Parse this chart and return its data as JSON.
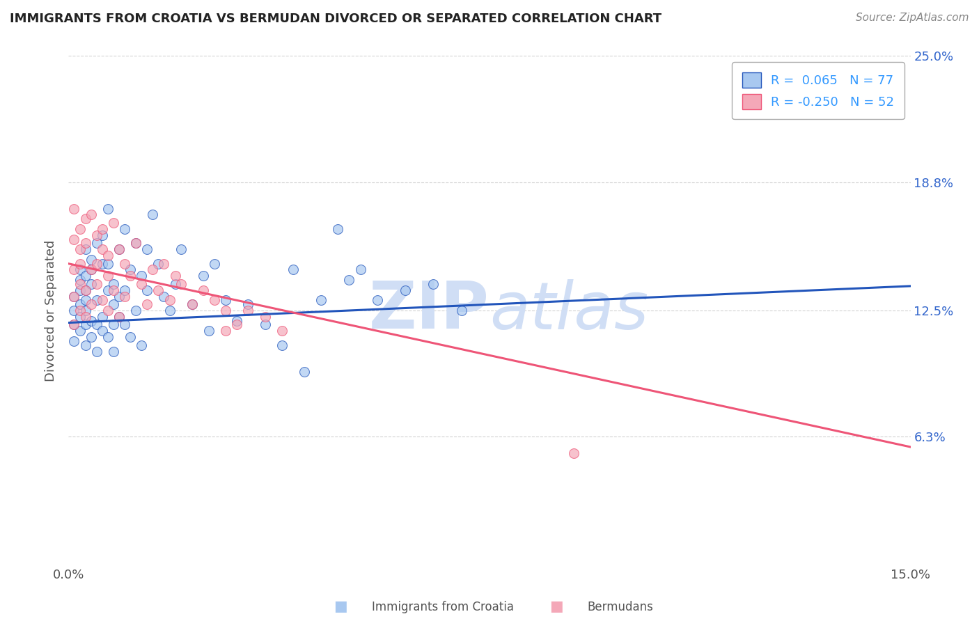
{
  "title": "IMMIGRANTS FROM CROATIA VS BERMUDAN DIVORCED OR SEPARATED CORRELATION CHART",
  "source_text": "Source: ZipAtlas.com",
  "ylabel_text": "Divorced or Separated",
  "xlim": [
    0.0,
    0.15
  ],
  "ylim": [
    0.0,
    0.25
  ],
  "xtick_positions": [
    0.0,
    0.15
  ],
  "xtick_labels": [
    "0.0%",
    "15.0%"
  ],
  "ytick_positions": [
    0.063,
    0.125,
    0.188,
    0.25
  ],
  "ytick_labels": [
    "6.3%",
    "12.5%",
    "18.8%",
    "25.0%"
  ],
  "watermark": "ZIPatlas",
  "blue_scatter_x": [
    0.001,
    0.001,
    0.001,
    0.001,
    0.002,
    0.002,
    0.002,
    0.002,
    0.002,
    0.002,
    0.003,
    0.003,
    0.003,
    0.003,
    0.003,
    0.003,
    0.003,
    0.004,
    0.004,
    0.004,
    0.004,
    0.004,
    0.005,
    0.005,
    0.005,
    0.005,
    0.006,
    0.006,
    0.006,
    0.006,
    0.007,
    0.007,
    0.007,
    0.007,
    0.008,
    0.008,
    0.008,
    0.008,
    0.009,
    0.009,
    0.009,
    0.01,
    0.01,
    0.01,
    0.011,
    0.011,
    0.012,
    0.012,
    0.013,
    0.013,
    0.014,
    0.014,
    0.015,
    0.016,
    0.017,
    0.018,
    0.019,
    0.02,
    0.022,
    0.024,
    0.025,
    0.026,
    0.028,
    0.03,
    0.032,
    0.035,
    0.04,
    0.045,
    0.05,
    0.06,
    0.065,
    0.042,
    0.055,
    0.07,
    0.038,
    0.052,
    0.048
  ],
  "blue_scatter_y": [
    0.125,
    0.118,
    0.132,
    0.11,
    0.135,
    0.122,
    0.14,
    0.115,
    0.128,
    0.145,
    0.13,
    0.118,
    0.142,
    0.108,
    0.155,
    0.125,
    0.135,
    0.15,
    0.12,
    0.138,
    0.112,
    0.145,
    0.158,
    0.118,
    0.13,
    0.105,
    0.148,
    0.122,
    0.162,
    0.115,
    0.135,
    0.175,
    0.112,
    0.148,
    0.128,
    0.118,
    0.138,
    0.105,
    0.155,
    0.122,
    0.132,
    0.165,
    0.118,
    0.135,
    0.145,
    0.112,
    0.158,
    0.125,
    0.142,
    0.108,
    0.135,
    0.155,
    0.172,
    0.148,
    0.132,
    0.125,
    0.138,
    0.155,
    0.128,
    0.142,
    0.115,
    0.148,
    0.13,
    0.12,
    0.128,
    0.118,
    0.145,
    0.13,
    0.14,
    0.135,
    0.138,
    0.095,
    0.13,
    0.125,
    0.108,
    0.145,
    0.165
  ],
  "pink_scatter_x": [
    0.001,
    0.001,
    0.001,
    0.001,
    0.001,
    0.002,
    0.002,
    0.002,
    0.002,
    0.002,
    0.003,
    0.003,
    0.003,
    0.003,
    0.004,
    0.004,
    0.004,
    0.005,
    0.005,
    0.005,
    0.006,
    0.006,
    0.006,
    0.007,
    0.007,
    0.007,
    0.008,
    0.008,
    0.009,
    0.009,
    0.01,
    0.01,
    0.011,
    0.012,
    0.013,
    0.014,
    0.015,
    0.016,
    0.017,
    0.018,
    0.019,
    0.02,
    0.022,
    0.024,
    0.026,
    0.028,
    0.03,
    0.032,
    0.035,
    0.038,
    0.09,
    0.028
  ],
  "pink_scatter_y": [
    0.145,
    0.16,
    0.132,
    0.175,
    0.118,
    0.155,
    0.138,
    0.165,
    0.125,
    0.148,
    0.17,
    0.135,
    0.158,
    0.122,
    0.145,
    0.172,
    0.128,
    0.162,
    0.138,
    0.148,
    0.155,
    0.13,
    0.165,
    0.142,
    0.152,
    0.125,
    0.168,
    0.135,
    0.155,
    0.122,
    0.148,
    0.132,
    0.142,
    0.158,
    0.138,
    0.128,
    0.145,
    0.135,
    0.148,
    0.13,
    0.142,
    0.138,
    0.128,
    0.135,
    0.13,
    0.125,
    0.118,
    0.125,
    0.122,
    0.115,
    0.055,
    0.115
  ],
  "blue_line_x": [
    0.0,
    0.15
  ],
  "blue_line_y": [
    0.119,
    0.137
  ],
  "pink_line_x": [
    0.0,
    0.15
  ],
  "pink_line_y": [
    0.148,
    0.058
  ],
  "blue_color": "#A8C8F0",
  "pink_color": "#F4A8B8",
  "blue_line_color": "#2255BB",
  "pink_line_color": "#EE5577",
  "background_color": "#FFFFFF",
  "grid_color": "#CCCCCC",
  "title_color": "#222222",
  "watermark_color": "#D0DEF5",
  "ytick_label_color": "#3366CC",
  "axis_label_color": "#555555",
  "legend_label1": "R =  0.065   N = 77",
  "legend_label2": "R = -0.250   N = 52",
  "legend_text_color": "#3399FF",
  "source_color": "#888888"
}
